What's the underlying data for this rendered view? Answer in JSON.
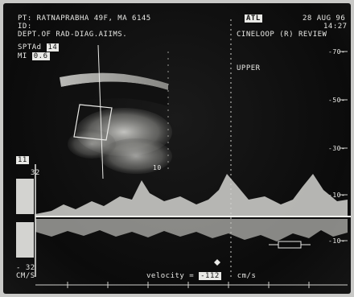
{
  "header": {
    "patient_line": "PT: RATNAPRABHA 49F, MA 6145",
    "id_line": "ID:",
    "dept_line": "DEPT.OF RAD-DIAG.AIIMS.",
    "date": "28 AUG 96",
    "time": "14:27",
    "mode": "CINELOOP (R) REVIEW",
    "logo_text": "ATL"
  },
  "params": {
    "spta_label": "SPTAd",
    "spta_value": "14",
    "mi_label": "MI",
    "mi_value": "0.6"
  },
  "labels": {
    "upper": "UPPER",
    "depth_mark": "10",
    "left_marker": "11"
  },
  "right_scale": [
    "-70-",
    "-50-",
    "-30-",
    "-10-",
    "-10-"
  ],
  "left_scale": {
    "top_value": "32",
    "bottom_value": "- 32",
    "unit": "CM/S"
  },
  "velocity": {
    "label": "velocity =",
    "value": "-112",
    "unit": "cm/s"
  },
  "colors": {
    "background": "#0b0b0b",
    "foreground": "#e9e9e6",
    "frame": "#c9c9c7"
  }
}
